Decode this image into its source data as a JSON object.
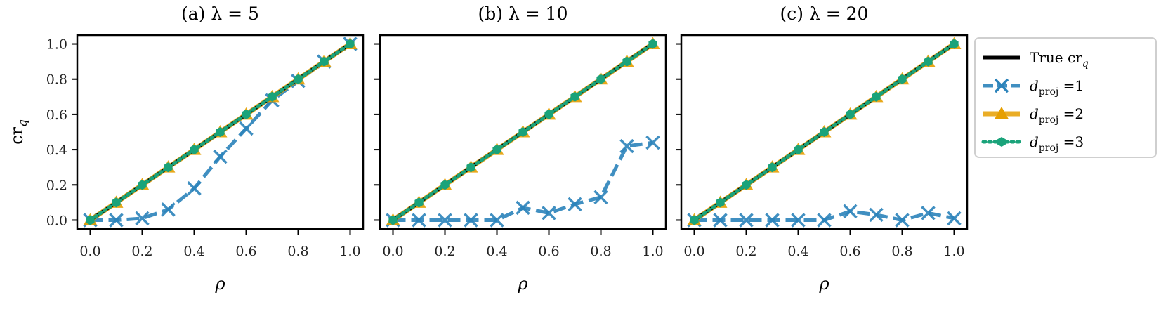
{
  "colors": {
    "true": "#000000",
    "d1": "#2b83ba",
    "d2": "#e69f00",
    "d3": "#1aa37a"
  },
  "legend": {
    "placement": "right-outside",
    "entries": [
      {
        "key": "true",
        "text": "True cr",
        "sub": "q"
      },
      {
        "key": "d1",
        "text": "d",
        "sub": "proj",
        "suffix": " =1"
      },
      {
        "key": "d2",
        "text": "d",
        "sub": "proj",
        "suffix": " =2"
      },
      {
        "key": "d3",
        "text": "d",
        "sub": "proj",
        "suffix": " =3"
      }
    ]
  },
  "chart_data": [
    {
      "type": "line",
      "title": "(a) λ = 5",
      "xlabel": "ρ",
      "ylabel": "cr_q",
      "xlim": [
        -0.05,
        1.05
      ],
      "ylim": [
        -0.05,
        1.05
      ],
      "xticks": [
        "0.0",
        "0.2",
        "0.4",
        "0.6",
        "0.8",
        "1.0"
      ],
      "yticks": [
        "0.0",
        "0.2",
        "0.4",
        "0.6",
        "0.8",
        "1.0"
      ],
      "x": [
        0.0,
        0.1,
        0.2,
        0.3,
        0.4,
        0.5,
        0.6,
        0.7,
        0.8,
        0.9,
        1.0
      ],
      "series": [
        {
          "name": "True cr_q",
          "key": "true",
          "values": [
            0.0,
            0.1,
            0.2,
            0.3,
            0.4,
            0.5,
            0.6,
            0.7,
            0.8,
            0.9,
            1.0
          ]
        },
        {
          "name": "d_proj =1",
          "key": "d1",
          "values": [
            0.0,
            0.0,
            0.01,
            0.06,
            0.18,
            0.36,
            0.52,
            0.68,
            0.79,
            0.9,
            1.0
          ]
        },
        {
          "name": "d_proj =2",
          "key": "d2",
          "values": [
            0.0,
            0.1,
            0.2,
            0.3,
            0.4,
            0.5,
            0.6,
            0.7,
            0.8,
            0.9,
            1.0
          ]
        },
        {
          "name": "d_proj =3",
          "key": "d3",
          "values": [
            0.0,
            0.1,
            0.2,
            0.3,
            0.4,
            0.5,
            0.6,
            0.7,
            0.8,
            0.9,
            1.0
          ]
        }
      ]
    },
    {
      "type": "line",
      "title": "(b) λ = 10",
      "xlabel": "ρ",
      "ylabel": "",
      "xlim": [
        -0.05,
        1.05
      ],
      "ylim": [
        -0.05,
        1.05
      ],
      "xticks": [
        "0.0",
        "0.2",
        "0.4",
        "0.6",
        "0.8",
        "1.0"
      ],
      "yticks": [],
      "x": [
        0.0,
        0.1,
        0.2,
        0.3,
        0.4,
        0.5,
        0.6,
        0.7,
        0.8,
        0.9,
        1.0
      ],
      "series": [
        {
          "name": "True cr_q",
          "key": "true",
          "values": [
            0.0,
            0.1,
            0.2,
            0.3,
            0.4,
            0.5,
            0.6,
            0.7,
            0.8,
            0.9,
            1.0
          ]
        },
        {
          "name": "d_proj =1",
          "key": "d1",
          "values": [
            0.0,
            0.0,
            0.0,
            0.0,
            0.0,
            0.07,
            0.04,
            0.09,
            0.13,
            0.42,
            0.44
          ]
        },
        {
          "name": "d_proj =2",
          "key": "d2",
          "values": [
            0.0,
            0.1,
            0.2,
            0.3,
            0.4,
            0.5,
            0.6,
            0.7,
            0.8,
            0.9,
            1.0
          ]
        },
        {
          "name": "d_proj =3",
          "key": "d3",
          "values": [
            0.0,
            0.1,
            0.2,
            0.3,
            0.4,
            0.5,
            0.6,
            0.7,
            0.8,
            0.9,
            1.0
          ]
        }
      ]
    },
    {
      "type": "line",
      "title": "(c) λ = 20",
      "xlabel": "ρ",
      "ylabel": "",
      "xlim": [
        -0.05,
        1.05
      ],
      "ylim": [
        -0.05,
        1.05
      ],
      "xticks": [
        "0.0",
        "0.2",
        "0.4",
        "0.6",
        "0.8",
        "1.0"
      ],
      "yticks": [],
      "x": [
        0.0,
        0.1,
        0.2,
        0.3,
        0.4,
        0.5,
        0.6,
        0.7,
        0.8,
        0.9,
        1.0
      ],
      "series": [
        {
          "name": "True cr_q",
          "key": "true",
          "values": [
            0.0,
            0.1,
            0.2,
            0.3,
            0.4,
            0.5,
            0.6,
            0.7,
            0.8,
            0.9,
            1.0
          ]
        },
        {
          "name": "d_proj =1",
          "key": "d1",
          "values": [
            0.0,
            0.0,
            0.0,
            0.0,
            0.0,
            0.0,
            0.05,
            0.03,
            0.0,
            0.04,
            0.01
          ]
        },
        {
          "name": "d_proj =2",
          "key": "d2",
          "values": [
            0.0,
            0.1,
            0.2,
            0.3,
            0.4,
            0.5,
            0.6,
            0.7,
            0.8,
            0.9,
            1.0
          ]
        },
        {
          "name": "d_proj =3",
          "key": "d3",
          "values": [
            0.0,
            0.1,
            0.2,
            0.3,
            0.4,
            0.5,
            0.6,
            0.7,
            0.8,
            0.9,
            1.0
          ]
        }
      ]
    }
  ]
}
